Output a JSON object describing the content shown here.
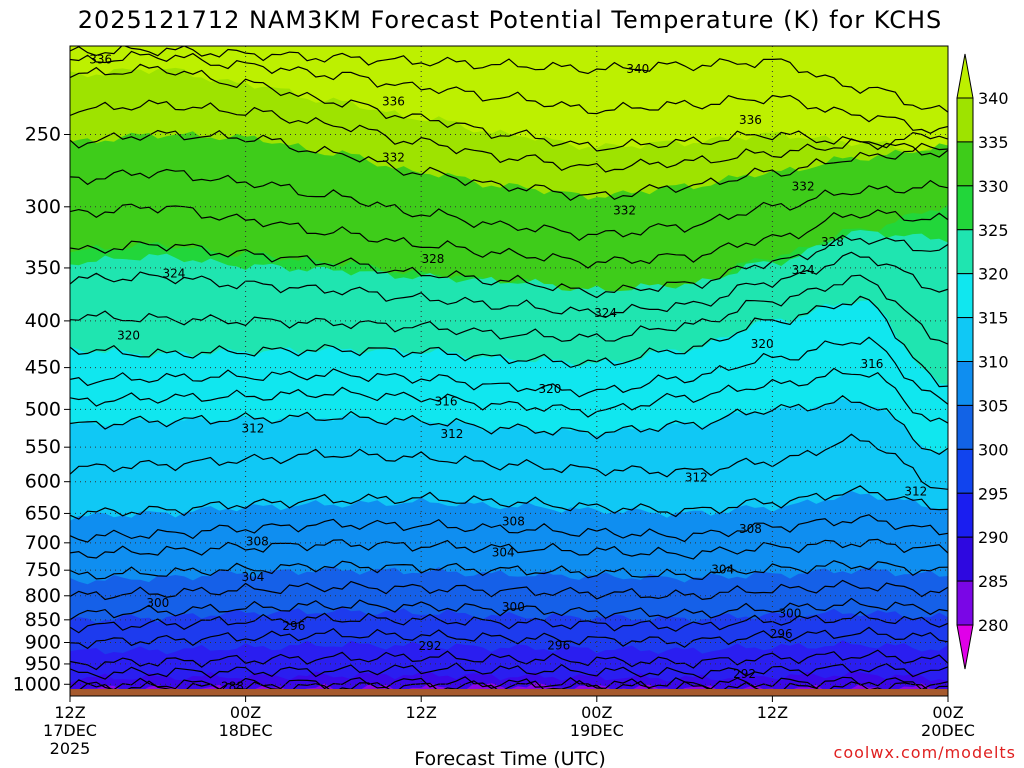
{
  "chart_data": {
    "type": "contour",
    "title": "2025121712 NAM3KM Forecast Potential Temperature (K) for KCHS",
    "xlabel": "Forecast Time (UTC)",
    "ylabel": "",
    "y_ticks": [
      "250",
      "300",
      "350",
      "400",
      "450",
      "500",
      "550",
      "600",
      "650",
      "700",
      "750",
      "800",
      "850",
      "900",
      "950",
      "1000"
    ],
    "x_ticks": [
      {
        "hours": 0,
        "lines": [
          "12Z",
          "17DEC",
          "2025"
        ]
      },
      {
        "hours": 12,
        "lines": [
          "00Z",
          "18DEC"
        ]
      },
      {
        "hours": 24,
        "lines": [
          "12Z"
        ]
      },
      {
        "hours": 36,
        "lines": [
          "00Z",
          "19DEC"
        ]
      },
      {
        "hours": 48,
        "lines": [
          "12Z"
        ]
      },
      {
        "hours": 60,
        "lines": [
          "00Z",
          "20DEC"
        ]
      }
    ],
    "pressure_range_hPa": [
      1030,
      200
    ],
    "hours_range": [
      0,
      60
    ],
    "colorbar": {
      "ticks": [
        "340",
        "335",
        "330",
        "325",
        "320",
        "315",
        "310",
        "305",
        "300",
        "295",
        "290",
        "285",
        "280"
      ],
      "colors": [
        "#9ee300",
        "#3ecc1a",
        "#22d63a",
        "#1fe5b0",
        "#10e7ef",
        "#10c8f5",
        "#0f8ef0",
        "#1263e6",
        "#1144ee",
        "#1a1ef0",
        "#2e08e0",
        "#7a06e6",
        "#c400ee"
      ],
      "top_color": "#bdf000",
      "bottom_color": "#e000e8"
    },
    "surface_color": "#a65a2e",
    "contour_interval_K": 2,
    "layers": [
      {
        "theta": 290,
        "color": "#8a08e6",
        "pressures": [
          1012,
          1010,
          1012,
          1010,
          1008,
          1004,
          1008,
          1010,
          1012,
          1010,
          1008
        ]
      },
      {
        "theta": 292,
        "color": "#3a08e8",
        "pressures": [
          985,
          982,
          980,
          978,
          976,
          980,
          982,
          985,
          980,
          975,
          985
        ]
      },
      {
        "theta": 296,
        "color": "#2a1ef0",
        "pressures": [
          920,
          918,
          912,
          905,
          908,
          912,
          915,
          918,
          910,
          905,
          915
        ]
      },
      {
        "theta": 300,
        "color": "#1d3bee",
        "pressures": [
          850,
          845,
          835,
          832,
          835,
          842,
          845,
          848,
          840,
          835,
          845
        ]
      },
      {
        "theta": 304,
        "color": "#1560e8",
        "pressures": [
          770,
          765,
          755,
          750,
          752,
          758,
          762,
          765,
          758,
          750,
          760
        ]
      },
      {
        "theta": 310,
        "color": "#0f8ef0",
        "pressures": [
          655,
          650,
          640,
          635,
          632,
          638,
          645,
          650,
          640,
          620,
          640
        ]
      },
      {
        "theta": 314,
        "color": "#10c8f5",
        "pressures": [
          520,
          515,
          512,
          510,
          515,
          525,
          530,
          520,
          500,
          490,
          560
        ]
      },
      {
        "theta": 320,
        "color": "#10e7ef",
        "pressures": [
          430,
          435,
          432,
          430,
          432,
          440,
          445,
          430,
          400,
          380,
          470
        ]
      },
      {
        "theta": 324,
        "color": "#1fe5b0",
        "pressures": [
          345,
          340,
          348,
          352,
          358,
          362,
          370,
          365,
          345,
          320,
          325
        ]
      },
      {
        "theta": 328,
        "color": "#22d63a",
        "pressures": [
          335,
          330,
          338,
          345,
          355,
          362,
          375,
          368,
          340,
          318,
          300
        ]
      },
      {
        "theta": 332,
        "color": "#3ecc1a",
        "pressures": [
          255,
          250,
          252,
          262,
          275,
          285,
          292,
          285,
          275,
          265,
          258
        ]
      },
      {
        "theta": 336,
        "color": "#9ee300",
        "pressures": [
          215,
          212,
          220,
          230,
          240,
          250,
          258,
          255,
          250,
          255,
          262
        ]
      }
    ],
    "contours": [
      {
        "theta": 288,
        "pressures": [
          1010,
          1008,
          1009,
          1007,
          1006,
          1004,
          1006,
          1008,
          1010,
          1006,
          1004
        ]
      },
      {
        "theta": 290,
        "pressures": [
          1002,
          1000,
          998,
          996,
          994,
          998,
          1000,
          998,
          996,
          992,
          1000
        ]
      },
      {
        "theta": 292,
        "pressures": [
          975,
          970,
          968,
          966,
          962,
          965,
          968,
          972,
          966,
          960,
          970
        ]
      },
      {
        "theta": 294,
        "pressures": [
          950,
          945,
          940,
          936,
          934,
          938,
          942,
          946,
          936,
          930,
          942
        ]
      },
      {
        "theta": 296,
        "pressures": [
          900,
          895,
          888,
          882,
          885,
          890,
          894,
          898,
          886,
          880,
          890
        ]
      },
      {
        "theta": 298,
        "pressures": [
          865,
          860,
          852,
          848,
          850,
          856,
          860,
          864,
          852,
          846,
          856
        ]
      },
      {
        "theta": 300,
        "pressures": [
          838,
          832,
          825,
          820,
          822,
          828,
          834,
          838,
          826,
          818,
          828
        ]
      },
      {
        "theta": 302,
        "pressures": [
          800,
          795,
          788,
          782,
          785,
          790,
          795,
          800,
          788,
          780,
          792
        ]
      },
      {
        "theta": 304,
        "pressures": [
          760,
          755,
          748,
          742,
          745,
          750,
          755,
          760,
          748,
          740,
          752
        ]
      },
      {
        "theta": 306,
        "pressures": [
          720,
          715,
          708,
          702,
          705,
          710,
          715,
          720,
          708,
          700,
          712
        ]
      },
      {
        "theta": 308,
        "pressures": [
          690,
          685,
          675,
          668,
          670,
          676,
          682,
          688,
          672,
          660,
          680
        ]
      },
      {
        "theta": 310,
        "pressures": [
          650,
          645,
          635,
          628,
          626,
          632,
          640,
          646,
          632,
          615,
          640
        ]
      },
      {
        "theta": 312,
        "pressures": [
          580,
          575,
          568,
          560,
          565,
          575,
          582,
          585,
          570,
          540,
          610
        ]
      },
      {
        "theta": 314,
        "pressures": [
          520,
          515,
          512,
          510,
          515,
          525,
          530,
          520,
          500,
          490,
          560
        ]
      },
      {
        "theta": 316,
        "pressures": [
          490,
          486,
          484,
          480,
          485,
          495,
          502,
          485,
          470,
          455,
          520
        ]
      },
      {
        "theta": 318,
        "pressures": [
          465,
          462,
          460,
          458,
          462,
          472,
          478,
          462,
          440,
          420,
          490
        ]
      },
      {
        "theta": 320,
        "pressures": [
          430,
          435,
          432,
          430,
          432,
          440,
          445,
          430,
          400,
          380,
          470
        ]
      },
      {
        "theta": 322,
        "pressures": [
          395,
          398,
          400,
          402,
          406,
          414,
          418,
          405,
          380,
          360,
          420
        ]
      },
      {
        "theta": 324,
        "pressures": [
          360,
          358,
          365,
          370,
          378,
          385,
          392,
          385,
          362,
          340,
          370
        ]
      },
      {
        "theta": 326,
        "pressures": [
          335,
          330,
          338,
          345,
          355,
          362,
          372,
          365,
          345,
          325,
          335
        ]
      },
      {
        "theta": 328,
        "pressures": [
          305,
          300,
          310,
          320,
          330,
          338,
          345,
          340,
          325,
          305,
          310
        ]
      },
      {
        "theta": 330,
        "pressures": [
          280,
          275,
          282,
          292,
          305,
          315,
          322,
          315,
          300,
          288,
          285
        ]
      },
      {
        "theta": 332,
        "pressures": [
          255,
          250,
          252,
          262,
          275,
          285,
          292,
          285,
          275,
          265,
          258
        ]
      },
      {
        "theta": 334,
        "pressures": [
          235,
          232,
          236,
          244,
          255,
          265,
          272,
          268,
          262,
          256,
          250
        ]
      },
      {
        "theta": 336,
        "pressures": [
          215,
          212,
          220,
          230,
          240,
          250,
          258,
          255,
          250,
          255,
          262
        ]
      },
      {
        "theta": 338,
        "pressures": [
          208,
          205,
          210,
          215,
          222,
          228,
          235,
          232,
          228,
          238,
          248
        ]
      },
      {
        "theta": 340,
        "pressures": [
          203,
          202,
          204,
          206,
          208,
          210,
          212,
          210,
          208,
          222,
          236
        ]
      }
    ],
    "contour_labels": [
      {
        "text": "336",
        "hours": 2.1,
        "p": 207
      },
      {
        "text": "336",
        "hours": 22.1,
        "p": 230
      },
      {
        "text": "336",
        "hours": 46.5,
        "p": 241
      },
      {
        "text": "340",
        "hours": 38.8,
        "p": 212
      },
      {
        "text": "332",
        "hours": 22.1,
        "p": 265
      },
      {
        "text": "332",
        "hours": 37.9,
        "p": 303
      },
      {
        "text": "332",
        "hours": 50.1,
        "p": 285
      },
      {
        "text": "328",
        "hours": 24.8,
        "p": 342
      },
      {
        "text": "328",
        "hours": 52.1,
        "p": 328
      },
      {
        "text": "324",
        "hours": 7.1,
        "p": 355
      },
      {
        "text": "324",
        "hours": 36.6,
        "p": 392
      },
      {
        "text": "324",
        "hours": 50.1,
        "p": 352
      },
      {
        "text": "320",
        "hours": 4.0,
        "p": 415
      },
      {
        "text": "320",
        "hours": 32.8,
        "p": 475
      },
      {
        "text": "320",
        "hours": 47.3,
        "p": 424
      },
      {
        "text": "316",
        "hours": 25.7,
        "p": 490
      },
      {
        "text": "316",
        "hours": 54.8,
        "p": 446
      },
      {
        "text": "312",
        "hours": 12.5,
        "p": 525
      },
      {
        "text": "312",
        "hours": 26.1,
        "p": 532
      },
      {
        "text": "312",
        "hours": 42.8,
        "p": 594
      },
      {
        "text": "312",
        "hours": 57.8,
        "p": 615
      },
      {
        "text": "308",
        "hours": 12.8,
        "p": 698
      },
      {
        "text": "308",
        "hours": 30.3,
        "p": 663
      },
      {
        "text": "308",
        "hours": 46.5,
        "p": 676
      },
      {
        "text": "304",
        "hours": 12.5,
        "p": 763
      },
      {
        "text": "304",
        "hours": 29.6,
        "p": 717
      },
      {
        "text": "304",
        "hours": 44.6,
        "p": 749
      },
      {
        "text": "300",
        "hours": 6.0,
        "p": 815
      },
      {
        "text": "300",
        "hours": 30.3,
        "p": 823
      },
      {
        "text": "300",
        "hours": 49.2,
        "p": 837
      },
      {
        "text": "296",
        "hours": 15.3,
        "p": 863
      },
      {
        "text": "296",
        "hours": 33.4,
        "p": 907
      },
      {
        "text": "296",
        "hours": 48.6,
        "p": 881
      },
      {
        "text": "292",
        "hours": 24.6,
        "p": 908
      },
      {
        "text": "292",
        "hours": 46.1,
        "p": 974
      },
      {
        "text": "288",
        "hours": 11.1,
        "p": 1005
      }
    ],
    "credit": "coolwx.com/modelts"
  }
}
